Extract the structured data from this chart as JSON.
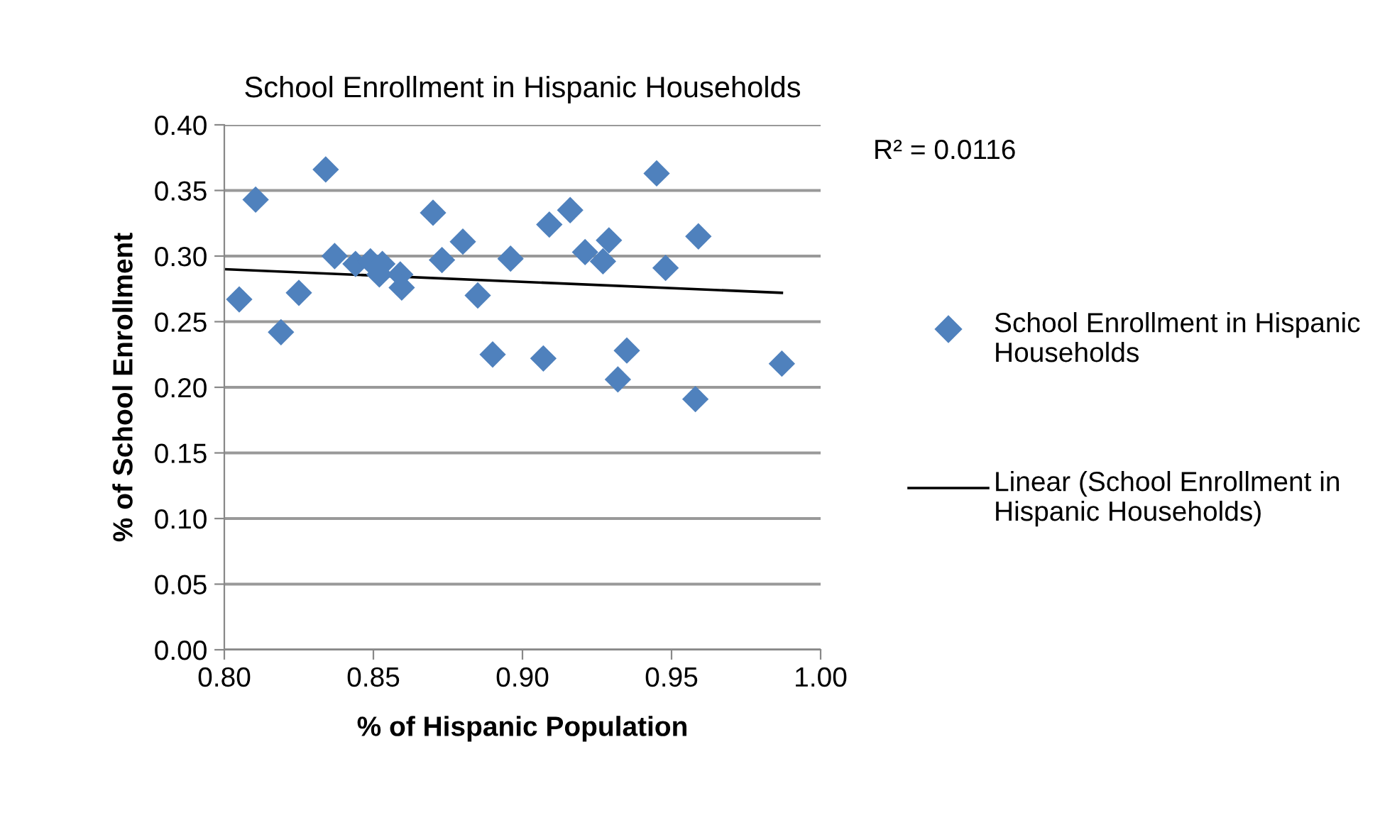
{
  "chart_data": {
    "type": "scatter",
    "title": "School Enrollment in Hispanic Households",
    "xlabel": "% of Hispanic Population",
    "ylabel": "% of School Enrollment",
    "xlim": [
      0.8,
      1.0
    ],
    "xticks": [
      {
        "value": 0.8,
        "label": "0.80"
      },
      {
        "value": 0.85,
        "label": "0.85"
      },
      {
        "value": 0.9,
        "label": "0.90"
      },
      {
        "value": 0.95,
        "label": "0.95"
      },
      {
        "value": 1.0,
        "label": "1.00"
      }
    ],
    "ylim": [
      0.0,
      0.4
    ],
    "yticks": [
      {
        "value": 0.0,
        "label": "0.00"
      },
      {
        "value": 0.05,
        "label": "0.05"
      },
      {
        "value": 0.1,
        "label": "0.10"
      },
      {
        "value": 0.15,
        "label": "0.15"
      },
      {
        "value": 0.2,
        "label": "0.20"
      },
      {
        "value": 0.25,
        "label": "0.25"
      },
      {
        "value": 0.3,
        "label": "0.30"
      },
      {
        "value": 0.35,
        "label": "0.35"
      },
      {
        "value": 0.4,
        "label": "0.40"
      }
    ],
    "grid": "y",
    "legend": "right",
    "marker": "diamond",
    "annotations": [
      "R² = 0.0116"
    ],
    "series": [
      {
        "name": "School Enrollment in Hispanic Households",
        "color": "#4f81bd",
        "x": [
          0.805,
          0.8105,
          0.819,
          0.825,
          0.834,
          0.837,
          0.844,
          0.849,
          0.852,
          0.853,
          0.859,
          0.8595,
          0.87,
          0.873,
          0.88,
          0.885,
          0.89,
          0.896,
          0.907,
          0.909,
          0.916,
          0.921,
          0.927,
          0.929,
          0.932,
          0.935,
          0.945,
          0.948,
          0.958,
          0.959,
          0.987
        ],
        "values": [
          0.267,
          0.343,
          0.242,
          0.272,
          0.366,
          0.3,
          0.294,
          0.296,
          0.286,
          0.294,
          0.286,
          0.276,
          0.333,
          0.297,
          0.311,
          0.27,
          0.225,
          0.298,
          0.222,
          0.324,
          0.335,
          0.303,
          0.296,
          0.312,
          0.206,
          0.228,
          0.363,
          0.291,
          0.191,
          0.315,
          0.218
        ]
      },
      {
        "name": "Linear (School Enrollment in Hispanic Households)",
        "type": "line",
        "color": "#000000",
        "marker": "none",
        "line_style": "solid",
        "x": [
          0.8,
          0.987
        ],
        "values": [
          0.29,
          0.272
        ]
      }
    ]
  }
}
